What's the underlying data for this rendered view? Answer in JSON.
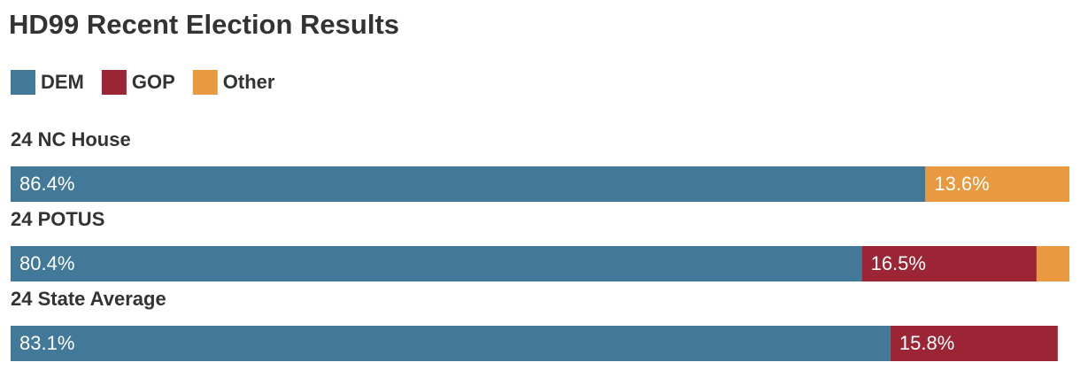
{
  "chart_data": {
    "type": "stacked-bar-horizontal",
    "title": "HD99 Recent Election Results",
    "categories": [
      "24 NC House",
      "24 POTUS",
      "24 State Average"
    ],
    "xlim": [
      0,
      100
    ],
    "series": [
      {
        "name": "DEM",
        "color": "#427898",
        "values": [
          86.4,
          80.4,
          83.1
        ],
        "value_labels": [
          "86.4%",
          "80.4%",
          "83.1%"
        ]
      },
      {
        "name": "GOP",
        "color": "#9c2535",
        "values": [
          null,
          16.5,
          15.8
        ],
        "value_labels": [
          null,
          "16.5%",
          "15.8%"
        ]
      },
      {
        "name": "Other",
        "color": "#e99a40",
        "values": [
          13.6,
          3.1,
          null
        ],
        "value_labels": [
          "13.6%",
          null,
          null
        ]
      }
    ]
  }
}
